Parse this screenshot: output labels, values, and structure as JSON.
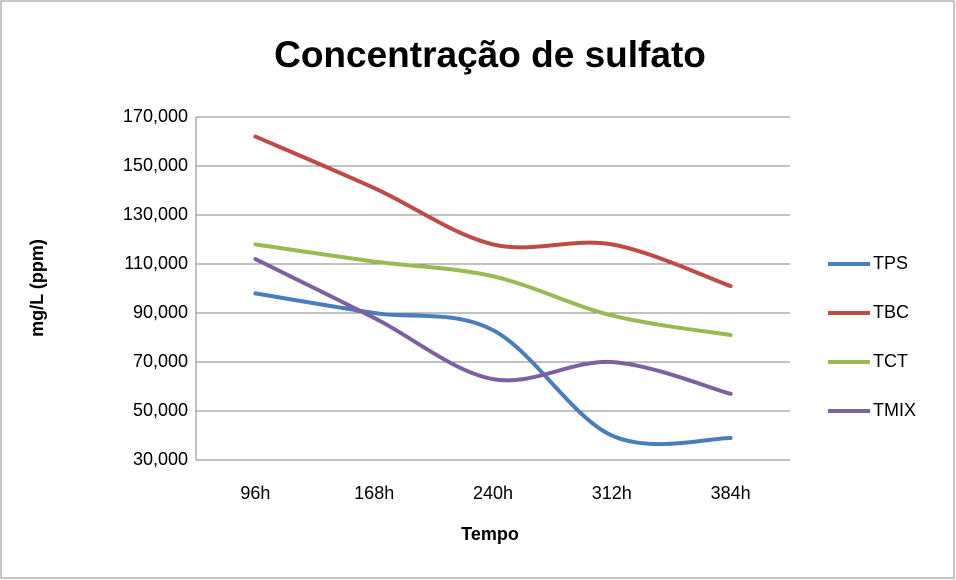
{
  "chart_data": {
    "type": "line",
    "title": "Concentração de sulfato",
    "x_label": "Tempo",
    "y_label": "mg/L (ppm)",
    "categories": [
      "96h",
      "168h",
      "240h",
      "312h",
      "384h"
    ],
    "series": [
      {
        "name": "TPS",
        "color": "#4a7ebb",
        "values": [
          98000,
          90000,
          83000,
          40000,
          39000
        ]
      },
      {
        "name": "TBC",
        "color": "#be4b48",
        "values": [
          162000,
          141000,
          118000,
          118000,
          101000
        ]
      },
      {
        "name": "TCT",
        "color": "#98b954",
        "values": [
          118000,
          111000,
          105000,
          89000,
          81000
        ]
      },
      {
        "name": "TMIX",
        "color": "#7d60a0",
        "values": [
          112000,
          88000,
          63000,
          70000,
          57000
        ]
      }
    ],
    "ylim": [
      30000,
      170000
    ],
    "yticks": [
      {
        "value": 30000,
        "label": "30,000"
      },
      {
        "value": 50000,
        "label": "50,000"
      },
      {
        "value": 70000,
        "label": "70,000"
      },
      {
        "value": 90000,
        "label": "90,000"
      },
      {
        "value": 110000,
        "label": "110,000"
      },
      {
        "value": 130000,
        "label": "130,000"
      },
      {
        "value": 150000,
        "label": "150,000"
      },
      {
        "value": 170000,
        "label": "170,000"
      }
    ],
    "grid": true,
    "smooth": true,
    "legend": "right"
  }
}
